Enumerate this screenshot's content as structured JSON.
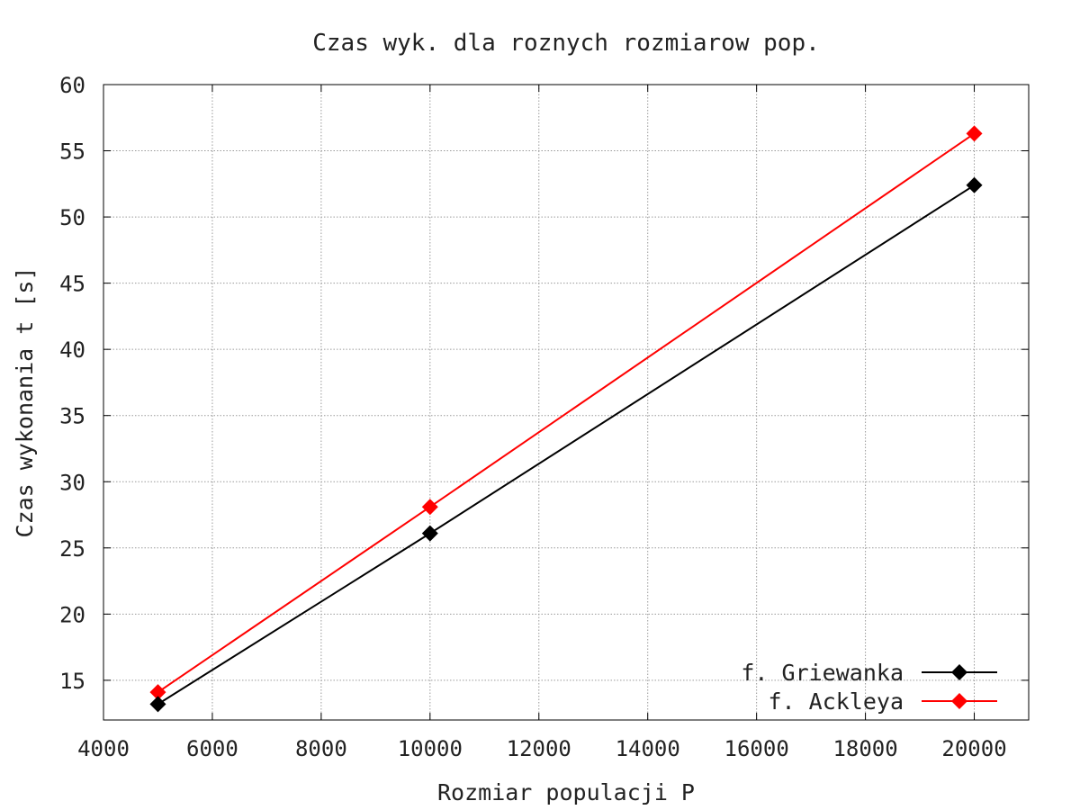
{
  "chart_data": {
    "type": "line",
    "title": "Czas wyk. dla roznych rozmiarow pop.",
    "xlabel": "Rozmiar populacji P",
    "ylabel": "Czas wykonania t [s]",
    "xlim": [
      4000,
      21000
    ],
    "ylim": [
      12,
      60
    ],
    "xticks": [
      "4000",
      "6000",
      "8000",
      "10000",
      "12000",
      "14000",
      "16000",
      "18000",
      "20000"
    ],
    "yticks": [
      "15",
      "20",
      "25",
      "30",
      "35",
      "40",
      "45",
      "50",
      "55",
      "60"
    ],
    "grid": true,
    "legend_position": "bottom-right",
    "x": [
      5000,
      10000,
      20000
    ],
    "series": [
      {
        "name": "f. Griewanka",
        "color": "#000000",
        "marker": "diamond",
        "values": [
          13.2,
          26.1,
          52.4
        ]
      },
      {
        "name": "f. Ackleya",
        "color": "#ff0000",
        "marker": "diamond",
        "values": [
          14.1,
          28.1,
          56.3
        ]
      }
    ]
  }
}
